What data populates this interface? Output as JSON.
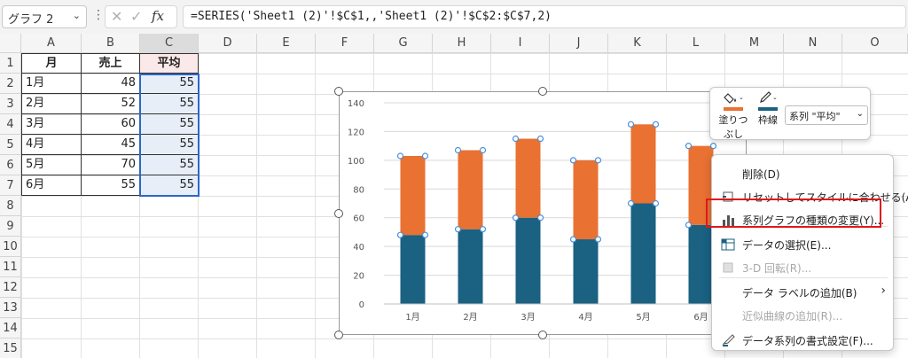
{
  "namebox": {
    "value": "グラフ 2"
  },
  "formula_bar": {
    "fx": "fx",
    "formula": "=SERIES('Sheet1 (2)'!$C$1,,'Sheet1 (2)'!$C$2:$C$7,2)"
  },
  "columns": [
    "A",
    "B",
    "C",
    "D",
    "E",
    "F",
    "G",
    "H",
    "I",
    "J",
    "K",
    "L",
    "M",
    "N",
    "O"
  ],
  "rows": [
    "1",
    "2",
    "3",
    "4",
    "5",
    "6",
    "7",
    "8",
    "9",
    "10",
    "11",
    "12",
    "13",
    "14",
    "15"
  ],
  "table": {
    "headers": [
      "月",
      "売上",
      "平均"
    ],
    "rows": [
      [
        "1月",
        "48",
        "55"
      ],
      [
        "2月",
        "52",
        "55"
      ],
      [
        "3月",
        "60",
        "55"
      ],
      [
        "4月",
        "45",
        "55"
      ],
      [
        "5月",
        "70",
        "55"
      ],
      [
        "6月",
        "55",
        "55"
      ]
    ]
  },
  "chart_data": {
    "type": "bar",
    "stacked": true,
    "categories": [
      "1月",
      "2月",
      "3月",
      "4月",
      "5月",
      "6月"
    ],
    "series": [
      {
        "values": [
          48,
          52,
          60,
          45,
          70,
          55
        ],
        "color": "#1a6182"
      },
      {
        "values": [
          55,
          55,
          55,
          55,
          55,
          55
        ],
        "color": "#e97132"
      }
    ],
    "ylim": [
      0,
      140
    ],
    "yticks": [
      "0",
      "20",
      "40",
      "60",
      "80",
      "100",
      "120",
      "140"
    ],
    "grid": true
  },
  "mini_toolbar": {
    "fill_label_1": "塗りつ",
    "fill_label_2": "ぶし",
    "outline_label": "枠線",
    "series_select": "系列 \"平均\"",
    "fill_color": "#e97132",
    "outline_color": "#1a6182"
  },
  "context_menu": {
    "items": [
      {
        "label": "削除(D)",
        "icon": "none",
        "disabled": false
      },
      {
        "label": "リセットしてスタイルに合わせる(A)",
        "icon": "reset-style-icon",
        "disabled": false
      },
      {
        "label": "系列グラフの種類の変更(Y)...",
        "icon": "change-chart-type-icon",
        "disabled": false
      },
      {
        "label": "データの選択(E)...",
        "icon": "select-data-icon",
        "disabled": false
      },
      {
        "label": "3-D 回転(R)...",
        "icon": "3d-rotation-icon",
        "disabled": true
      },
      {
        "label": "データ ラベルの追加(B)",
        "icon": "none",
        "disabled": false,
        "submenu": "›"
      },
      {
        "label": "近似曲線の追加(R)...",
        "icon": "none",
        "disabled": true
      },
      {
        "label": "データ系列の書式設定(F)...",
        "icon": "format-series-icon",
        "disabled": false
      }
    ]
  },
  "colors": {
    "accent_select": "#2b67c7",
    "highlight": "#e01818"
  }
}
